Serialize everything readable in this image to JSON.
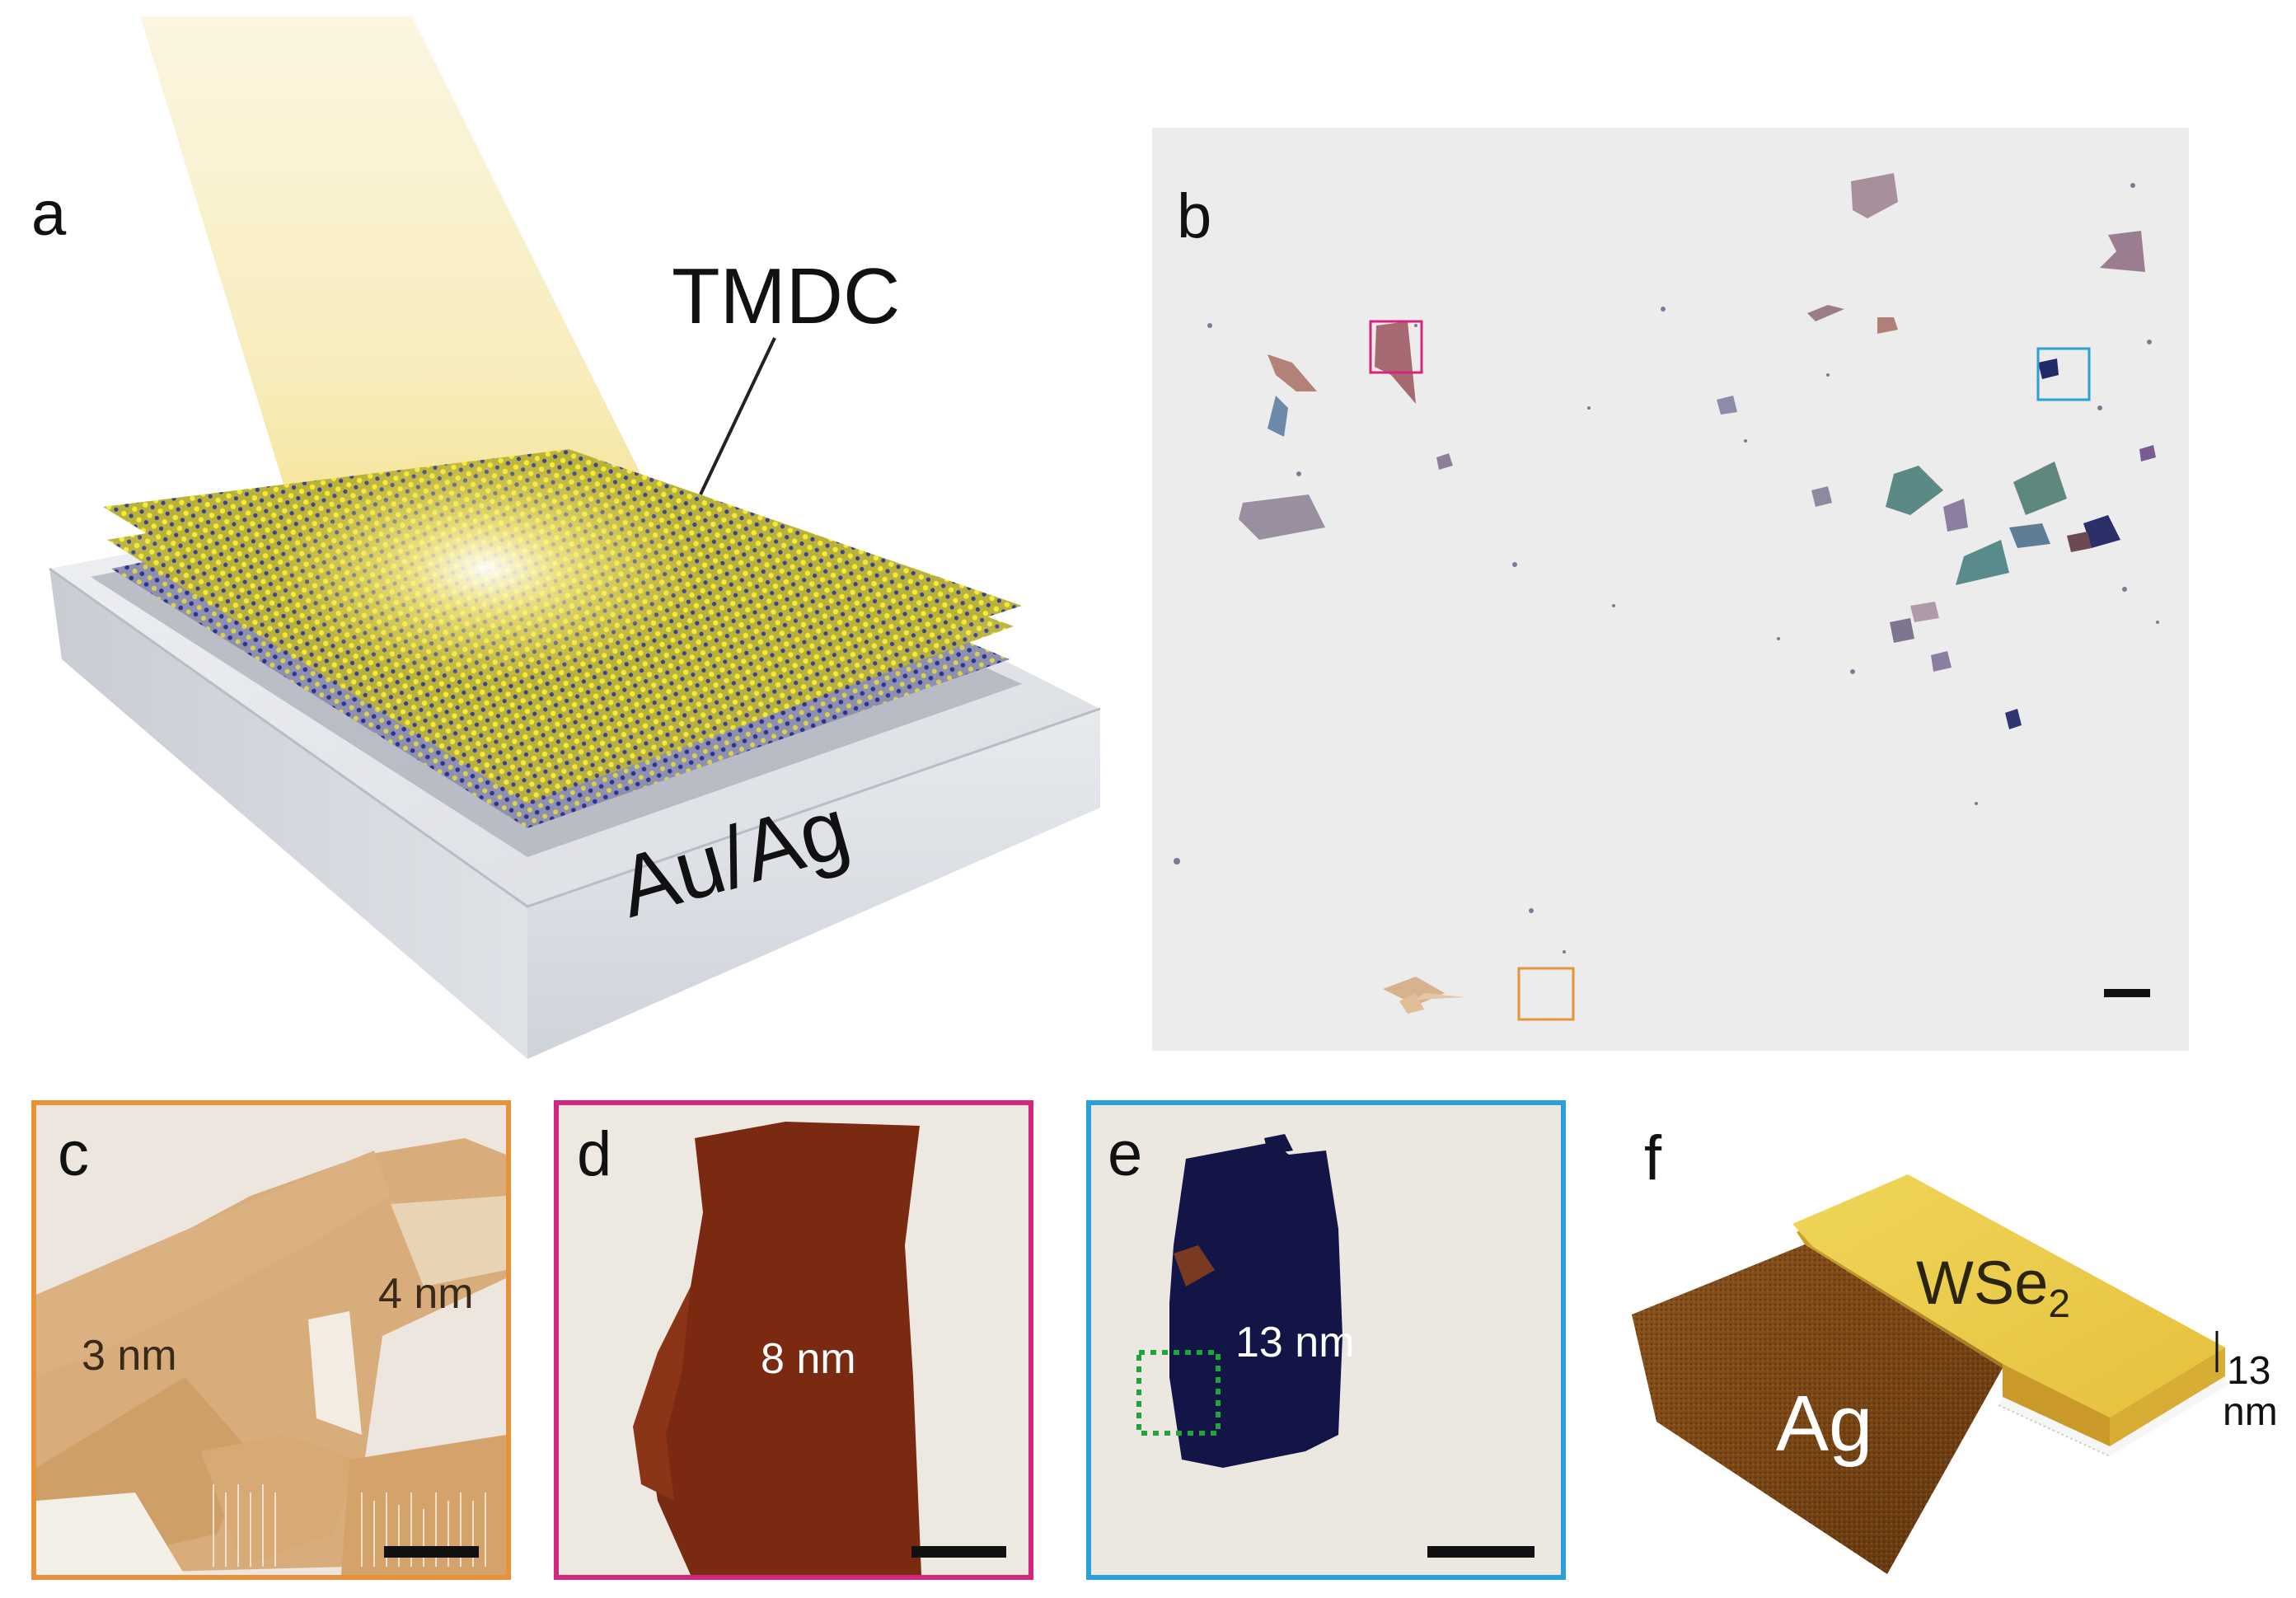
{
  "panels": {
    "a": {
      "letter": "a",
      "tmdc_label": "TMDC",
      "substrate_label": "Au/Ag"
    },
    "b": {
      "letter": "b"
    },
    "c": {
      "letter": "c",
      "thick_1": "3 nm",
      "thick_2": "4 nm",
      "frame_color": "#e8923a"
    },
    "d": {
      "letter": "d",
      "thick": "8 nm",
      "frame_color": "#d6257c"
    },
    "e": {
      "letter": "e",
      "thick": "13 nm",
      "frame_color": "#2b9fd8"
    },
    "f": {
      "letter": "f",
      "flake_label": "WSe",
      "flake_sub": "2",
      "substrate_label": "Ag",
      "height_value": "13",
      "height_unit": "nm"
    }
  },
  "colors": {
    "flake_c": "#d7a872",
    "flake_d": "#7a2a10",
    "flake_e": "#121545",
    "box_green": "#1fa63b"
  }
}
